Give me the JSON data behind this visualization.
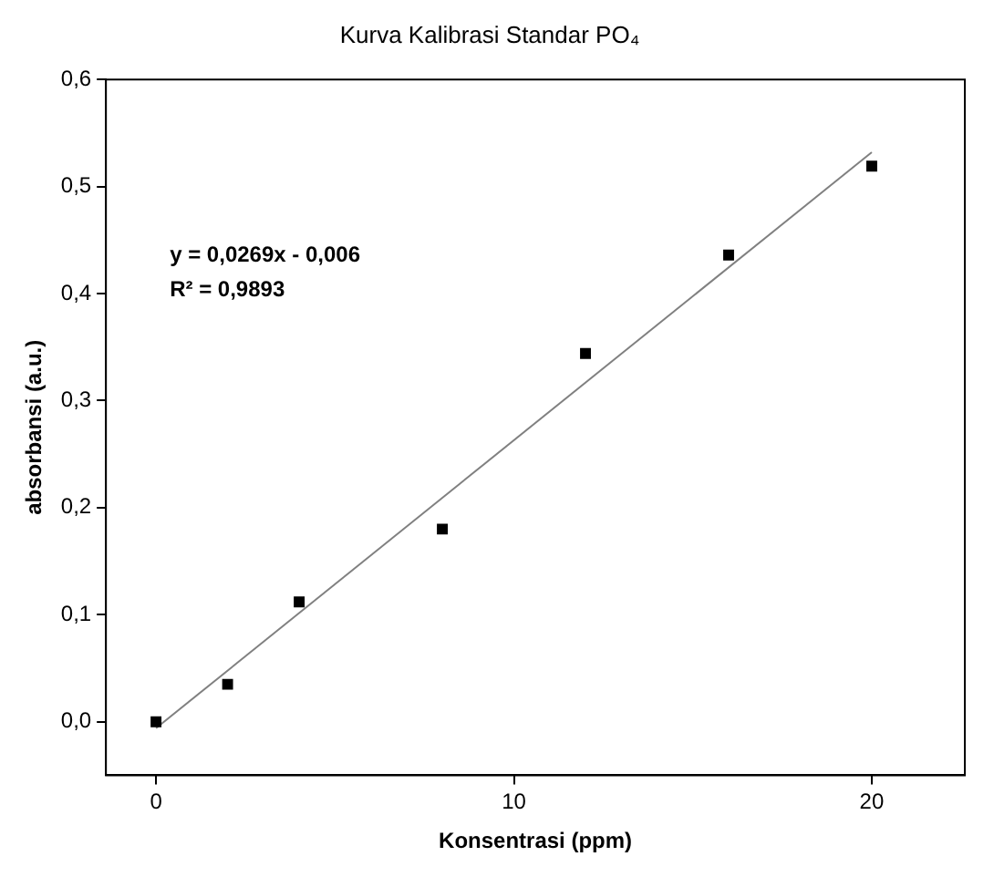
{
  "chart_data": {
    "type": "scatter",
    "title": "Kurva Kalibrasi Standar PO₄",
    "xlabel": "Konsentrasi (ppm)",
    "ylabel": "absorbansi (a.u.)",
    "series": [
      {
        "type": "scatter",
        "x": [
          0,
          2,
          4,
          8,
          12,
          16,
          20
        ],
        "values": [
          0,
          0.035,
          0.112,
          0.18,
          0.344,
          0.436,
          0.519
        ],
        "color": "#000000",
        "marker": "square"
      },
      {
        "type": "line",
        "x": [
          0,
          20
        ],
        "values": [
          -0.006,
          0.532
        ],
        "color": "#808080",
        "marker": "none",
        "line_style": "solid"
      }
    ],
    "xlim": [
      -1.4,
      22.6
    ],
    "xticks": [
      0,
      10,
      20
    ],
    "ylim": [
      -0.05,
      0.6
    ],
    "yticks": [
      {
        "value": 0,
        "label": "0,0"
      },
      {
        "value": 0.1,
        "label": "0,1"
      },
      {
        "value": 0.2,
        "label": "0,2"
      },
      {
        "value": 0.3,
        "label": "0,3"
      },
      {
        "value": 0.4,
        "label": "0,4"
      },
      {
        "value": 0.5,
        "label": "0,5"
      },
      {
        "value": 0.6,
        "label": "0,6"
      }
    ],
    "annotations": [
      "y = 0,0269x - 0,006",
      "R² = 0,9893"
    ],
    "grid": false,
    "legend": false
  }
}
